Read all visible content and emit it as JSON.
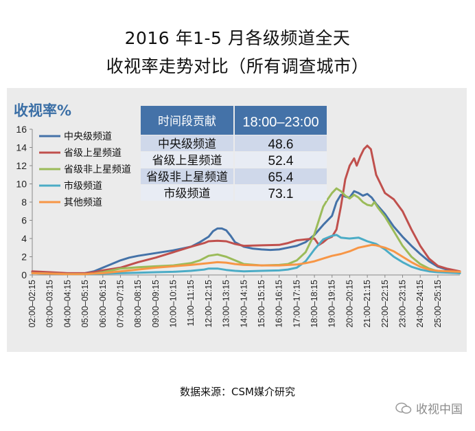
{
  "page": {
    "title_line1": "2016 年1-5 月各级频道全天",
    "title_line2": "收视率走势对比（所有调查城市）",
    "source": "数据来源：CSM媒介研究",
    "watermark": "收视中国"
  },
  "chart_data": {
    "type": "line",
    "ylabel": "收视率%",
    "ylim": [
      0,
      16
    ],
    "yticks": [
      0,
      2,
      4,
      6,
      8,
      10,
      12,
      14,
      16
    ],
    "x_tick_labels": [
      "02:00–02:15",
      "03:00–03:15",
      "04:00–04:15",
      "05:00–05:15",
      "06:00–06:15",
      "07:00–07:15",
      "08:00–08:15",
      "09:00–09:15",
      "10:00–10:15",
      "11:00–11:15",
      "12:00–12:15",
      "13:00–13:15",
      "14:00–14:15",
      "15:00–15:15",
      "16:00–16:15",
      "17:00–17:15",
      "18:00–18:15",
      "19:00–19:15",
      "20:00–20:15",
      "21:00–21:15",
      "22:00–22:15",
      "23:00–23:15",
      "24:00–24:15",
      "25:00–25:15"
    ],
    "x_range": [
      2,
      26.25
    ],
    "grid": false,
    "legend_position": "top-left",
    "series": [
      {
        "name": "中央级频道",
        "color": "#4472a8",
        "points": [
          [
            2,
            0.3
          ],
          [
            3,
            0.2
          ],
          [
            4,
            0.15
          ],
          [
            5,
            0.2
          ],
          [
            5.5,
            0.4
          ],
          [
            6,
            0.8
          ],
          [
            6.5,
            1.2
          ],
          [
            7,
            1.6
          ],
          [
            7.5,
            1.9
          ],
          [
            8,
            2.1
          ],
          [
            9,
            2.4
          ],
          [
            10,
            2.7
          ],
          [
            10.5,
            2.9
          ],
          [
            11,
            3.1
          ],
          [
            11.5,
            3.6
          ],
          [
            12,
            4.2
          ],
          [
            12.25,
            4.8
          ],
          [
            12.5,
            5.1
          ],
          [
            12.75,
            5.1
          ],
          [
            13,
            4.9
          ],
          [
            13.25,
            4.3
          ],
          [
            13.5,
            3.6
          ],
          [
            14,
            3.1
          ],
          [
            14.5,
            2.9
          ],
          [
            15,
            2.8
          ],
          [
            15.5,
            2.75
          ],
          [
            16,
            2.8
          ],
          [
            16.5,
            3.0
          ],
          [
            17,
            3.2
          ],
          [
            17.5,
            3.6
          ],
          [
            18,
            4.4
          ],
          [
            18.5,
            5.5
          ],
          [
            19,
            6.5
          ],
          [
            19.25,
            8.0
          ],
          [
            19.5,
            8.8
          ],
          [
            19.75,
            8.6
          ],
          [
            20,
            8.5
          ],
          [
            20.25,
            9.2
          ],
          [
            20.5,
            9.0
          ],
          [
            20.75,
            8.7
          ],
          [
            21,
            8.9
          ],
          [
            21.25,
            8.5
          ],
          [
            21.5,
            7.8
          ],
          [
            22,
            6.7
          ],
          [
            22.5,
            5.3
          ],
          [
            23,
            4.2
          ],
          [
            23.5,
            3.2
          ],
          [
            24,
            2.3
          ],
          [
            24.5,
            1.5
          ],
          [
            25,
            0.9
          ],
          [
            25.5,
            0.6
          ],
          [
            26.25,
            0.35
          ]
        ]
      },
      {
        "name": "省级上星频道",
        "color": "#c0504d",
        "points": [
          [
            2,
            0.4
          ],
          [
            3,
            0.3
          ],
          [
            4,
            0.2
          ],
          [
            5,
            0.2
          ],
          [
            5.5,
            0.3
          ],
          [
            6,
            0.5
          ],
          [
            7,
            0.8
          ],
          [
            8,
            1.4
          ],
          [
            9,
            1.9
          ],
          [
            10,
            2.5
          ],
          [
            11,
            3.1
          ],
          [
            11.75,
            3.5
          ],
          [
            12,
            3.7
          ],
          [
            12.5,
            3.75
          ],
          [
            13,
            3.7
          ],
          [
            13.5,
            3.4
          ],
          [
            14,
            3.2
          ],
          [
            15,
            3.25
          ],
          [
            16,
            3.3
          ],
          [
            16.5,
            3.5
          ],
          [
            17,
            3.8
          ],
          [
            17.5,
            3.9
          ],
          [
            18,
            4.0
          ],
          [
            18.25,
            3.3
          ],
          [
            18.5,
            3.6
          ],
          [
            18.75,
            4.0
          ],
          [
            19,
            4.2
          ],
          [
            19.25,
            5.0
          ],
          [
            19.5,
            7.5
          ],
          [
            19.75,
            10.5
          ],
          [
            20,
            12.0
          ],
          [
            20.25,
            12.8
          ],
          [
            20.4,
            12.0
          ],
          [
            20.6,
            13.0
          ],
          [
            20.8,
            13.8
          ],
          [
            21,
            14.2
          ],
          [
            21.2,
            13.8
          ],
          [
            21.5,
            11.0
          ],
          [
            21.75,
            10.0
          ],
          [
            22,
            9.0
          ],
          [
            22.5,
            8.3
          ],
          [
            23,
            7.0
          ],
          [
            23.5,
            5.0
          ],
          [
            24,
            3.2
          ],
          [
            24.5,
            1.8
          ],
          [
            25,
            1.0
          ],
          [
            25.5,
            0.7
          ],
          [
            26.25,
            0.4
          ]
        ]
      },
      {
        "name": "省级非上星频道",
        "color": "#9bbb59",
        "points": [
          [
            2,
            0.2
          ],
          [
            3,
            0.15
          ],
          [
            4,
            0.1
          ],
          [
            5,
            0.1
          ],
          [
            5.5,
            0.15
          ],
          [
            6,
            0.3
          ],
          [
            6.5,
            0.5
          ],
          [
            7,
            0.7
          ],
          [
            8,
            0.85
          ],
          [
            9,
            0.95
          ],
          [
            10,
            1.05
          ],
          [
            11,
            1.3
          ],
          [
            11.5,
            1.6
          ],
          [
            12,
            2.1
          ],
          [
            12.5,
            2.25
          ],
          [
            13,
            2.0
          ],
          [
            13.5,
            1.6
          ],
          [
            14,
            1.2
          ],
          [
            15,
            1.05
          ],
          [
            16,
            1.1
          ],
          [
            16.5,
            1.2
          ],
          [
            17,
            1.6
          ],
          [
            17.5,
            2.5
          ],
          [
            18,
            4.5
          ],
          [
            18.25,
            6.0
          ],
          [
            18.5,
            7.5
          ],
          [
            18.75,
            8.3
          ],
          [
            19,
            9.0
          ],
          [
            19.25,
            9.5
          ],
          [
            19.5,
            9.2
          ],
          [
            19.75,
            8.7
          ],
          [
            20,
            8.4
          ],
          [
            20.25,
            8.8
          ],
          [
            20.5,
            8.5
          ],
          [
            20.75,
            8.0
          ],
          [
            21,
            7.7
          ],
          [
            21.25,
            7.6
          ],
          [
            21.4,
            8.0
          ],
          [
            21.6,
            7.4
          ],
          [
            22,
            6.4
          ],
          [
            22.5,
            4.8
          ],
          [
            23,
            3.2
          ],
          [
            23.5,
            2.0
          ],
          [
            24,
            1.2
          ],
          [
            24.5,
            0.7
          ],
          [
            25,
            0.4
          ],
          [
            25.5,
            0.3
          ],
          [
            26.25,
            0.2
          ]
        ]
      },
      {
        "name": "市级频道",
        "color": "#4bacc6",
        "points": [
          [
            2,
            0.2
          ],
          [
            3,
            0.15
          ],
          [
            4,
            0.1
          ],
          [
            5,
            0.1
          ],
          [
            5.5,
            0.1
          ],
          [
            6,
            0.15
          ],
          [
            7,
            0.2
          ],
          [
            8,
            0.25
          ],
          [
            9,
            0.3
          ],
          [
            10,
            0.35
          ],
          [
            11,
            0.45
          ],
          [
            11.75,
            0.6
          ],
          [
            12,
            0.7
          ],
          [
            12.5,
            0.7
          ],
          [
            13,
            0.55
          ],
          [
            13.5,
            0.45
          ],
          [
            14,
            0.4
          ],
          [
            15,
            0.45
          ],
          [
            16,
            0.5
          ],
          [
            16.5,
            0.6
          ],
          [
            17,
            0.8
          ],
          [
            17.5,
            1.5
          ],
          [
            18,
            2.8
          ],
          [
            18.5,
            3.9
          ],
          [
            19,
            4.3
          ],
          [
            19.25,
            4.4
          ],
          [
            19.5,
            4.1
          ],
          [
            20,
            4.0
          ],
          [
            20.5,
            4.1
          ],
          [
            20.75,
            3.9
          ],
          [
            21,
            3.7
          ],
          [
            21.5,
            3.4
          ],
          [
            22,
            2.8
          ],
          [
            22.5,
            2.0
          ],
          [
            23,
            1.4
          ],
          [
            23.5,
            0.9
          ],
          [
            24,
            0.6
          ],
          [
            24.5,
            0.4
          ],
          [
            25,
            0.3
          ],
          [
            26.25,
            0.2
          ]
        ]
      },
      {
        "name": "其他频道",
        "color": "#f79646",
        "points": [
          [
            2,
            0.2
          ],
          [
            3,
            0.15
          ],
          [
            4,
            0.1
          ],
          [
            5,
            0.1
          ],
          [
            6,
            0.2
          ],
          [
            7,
            0.4
          ],
          [
            8,
            0.6
          ],
          [
            9,
            0.8
          ],
          [
            10,
            0.95
          ],
          [
            11,
            1.1
          ],
          [
            12,
            1.3
          ],
          [
            12.5,
            1.4
          ],
          [
            13,
            1.35
          ],
          [
            13.5,
            1.2
          ],
          [
            14,
            1.1
          ],
          [
            15,
            1.05
          ],
          [
            16,
            1.05
          ],
          [
            17,
            1.15
          ],
          [
            17.5,
            1.3
          ],
          [
            18,
            1.5
          ],
          [
            18.5,
            1.8
          ],
          [
            19,
            2.1
          ],
          [
            19.5,
            2.3
          ],
          [
            20,
            2.6
          ],
          [
            20.5,
            3.0
          ],
          [
            21,
            3.2
          ],
          [
            21.25,
            3.3
          ],
          [
            21.5,
            3.25
          ],
          [
            22,
            3.0
          ],
          [
            22.5,
            2.6
          ],
          [
            23,
            2.0
          ],
          [
            23.5,
            1.4
          ],
          [
            24,
            0.9
          ],
          [
            24.5,
            0.6
          ],
          [
            25,
            0.45
          ],
          [
            26.25,
            0.35
          ]
        ]
      }
    ],
    "table": {
      "header": [
        "时间段贡献",
        "18:00–23:00"
      ],
      "rows": [
        [
          "中央级频道",
          "48.6"
        ],
        [
          "省级上星频道",
          "52.4"
        ],
        [
          "省级非上星频道",
          "65.4"
        ],
        [
          "市级频道",
          "73.1"
        ]
      ]
    }
  }
}
